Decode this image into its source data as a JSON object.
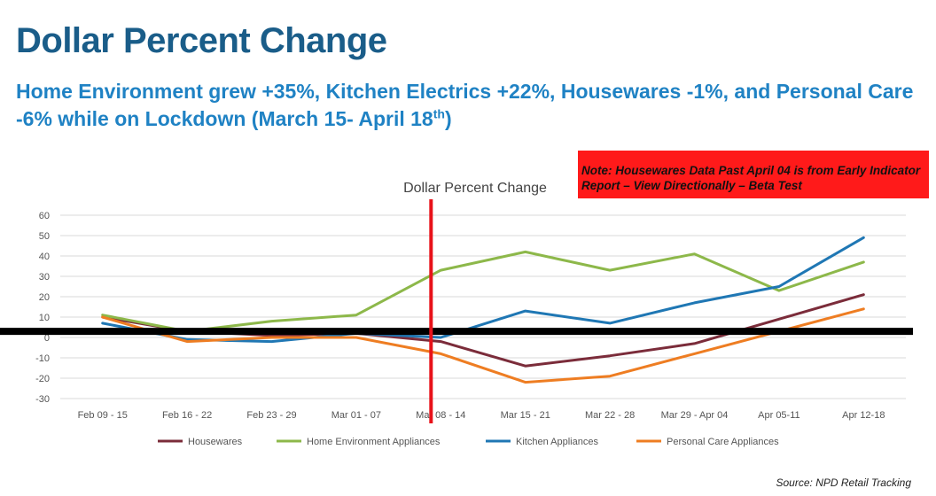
{
  "header": {
    "title": "Dollar Percent Change",
    "subtitle_prefix": "Home Environment grew +35%, Kitchen Electrics +22%, Housewares  -1%, and Personal Care -6% while on Lockdown (March 15- April 18",
    "subtitle_sup": "th",
    "subtitle_suffix": ")"
  },
  "note": {
    "text": "Note:  Housewares Data Past April 04 is from Early Indicator Report – View Directionally – Beta Test"
  },
  "source": "Source:  NPD Retail Tracking",
  "colors": {
    "title": "#1a5d89",
    "subtitle": "#1f82c4",
    "note_bg": "#ff1a1a",
    "marker_line": "#e8121a",
    "baseline": "#000000"
  },
  "chart_data": {
    "type": "line",
    "title": "Dollar Percent Change",
    "xlabel": "",
    "ylabel": "",
    "ylim": [
      -30,
      60
    ],
    "yticks": [
      -30,
      -20,
      -10,
      0,
      10,
      20,
      30,
      40,
      50,
      60
    ],
    "categories": [
      "Feb 09 - 15",
      "Feb 16 - 22",
      "Feb 23 - 29",
      "Mar 01 - 07",
      "Mar 08 - 14",
      "Mar 15 - 21",
      "Mar 22 - 28",
      "Mar 29 - Apr 04",
      "Apr 05-11",
      "Apr 12-18"
    ],
    "series": [
      {
        "name": "Housewares",
        "color": "#7b2c3a",
        "values": [
          10,
          3,
          1,
          2,
          -2,
          -14,
          -9,
          -3,
          9,
          21
        ]
      },
      {
        "name": "Home Environment Appliances",
        "color": "#8db84a",
        "values": [
          11,
          3,
          8,
          11,
          33,
          42,
          33,
          41,
          23,
          37
        ]
      },
      {
        "name": "Kitchen Appliances",
        "color": "#1f77b4",
        "values": [
          7,
          -1,
          -2,
          2,
          0,
          13,
          7,
          17,
          25,
          49
        ]
      },
      {
        "name": "Personal Care Appliances",
        "color": "#ee7d22",
        "values": [
          10,
          -2,
          0,
          0,
          -8,
          -22,
          -19,
          -8,
          3,
          14
        ]
      }
    ],
    "vertical_marker_after": "Mar 08 - 14",
    "reference_line_value": 3,
    "grid": true,
    "legend": "bottom"
  }
}
